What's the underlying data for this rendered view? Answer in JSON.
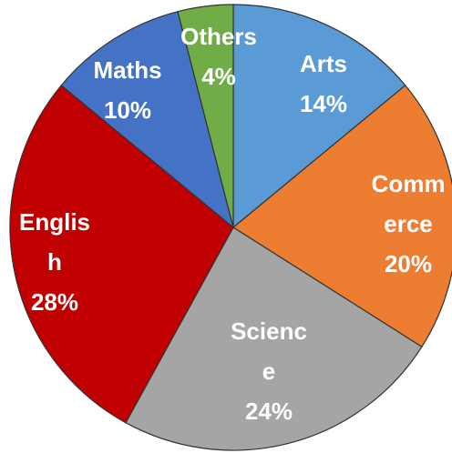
{
  "chart_data": {
    "type": "pie",
    "categories": [
      "Arts",
      "Commerce",
      "Science",
      "English",
      "Maths",
      "Others"
    ],
    "values": [
      14,
      20,
      24,
      28,
      10,
      4
    ],
    "value_labels": [
      "14%",
      "20%",
      "24%",
      "28%",
      "10%",
      "4%"
    ],
    "colors": [
      "#5b9bd5",
      "#ed7d31",
      "#a5a5a5",
      "#c00000",
      "#4472c4",
      "#70ad47"
    ]
  }
}
